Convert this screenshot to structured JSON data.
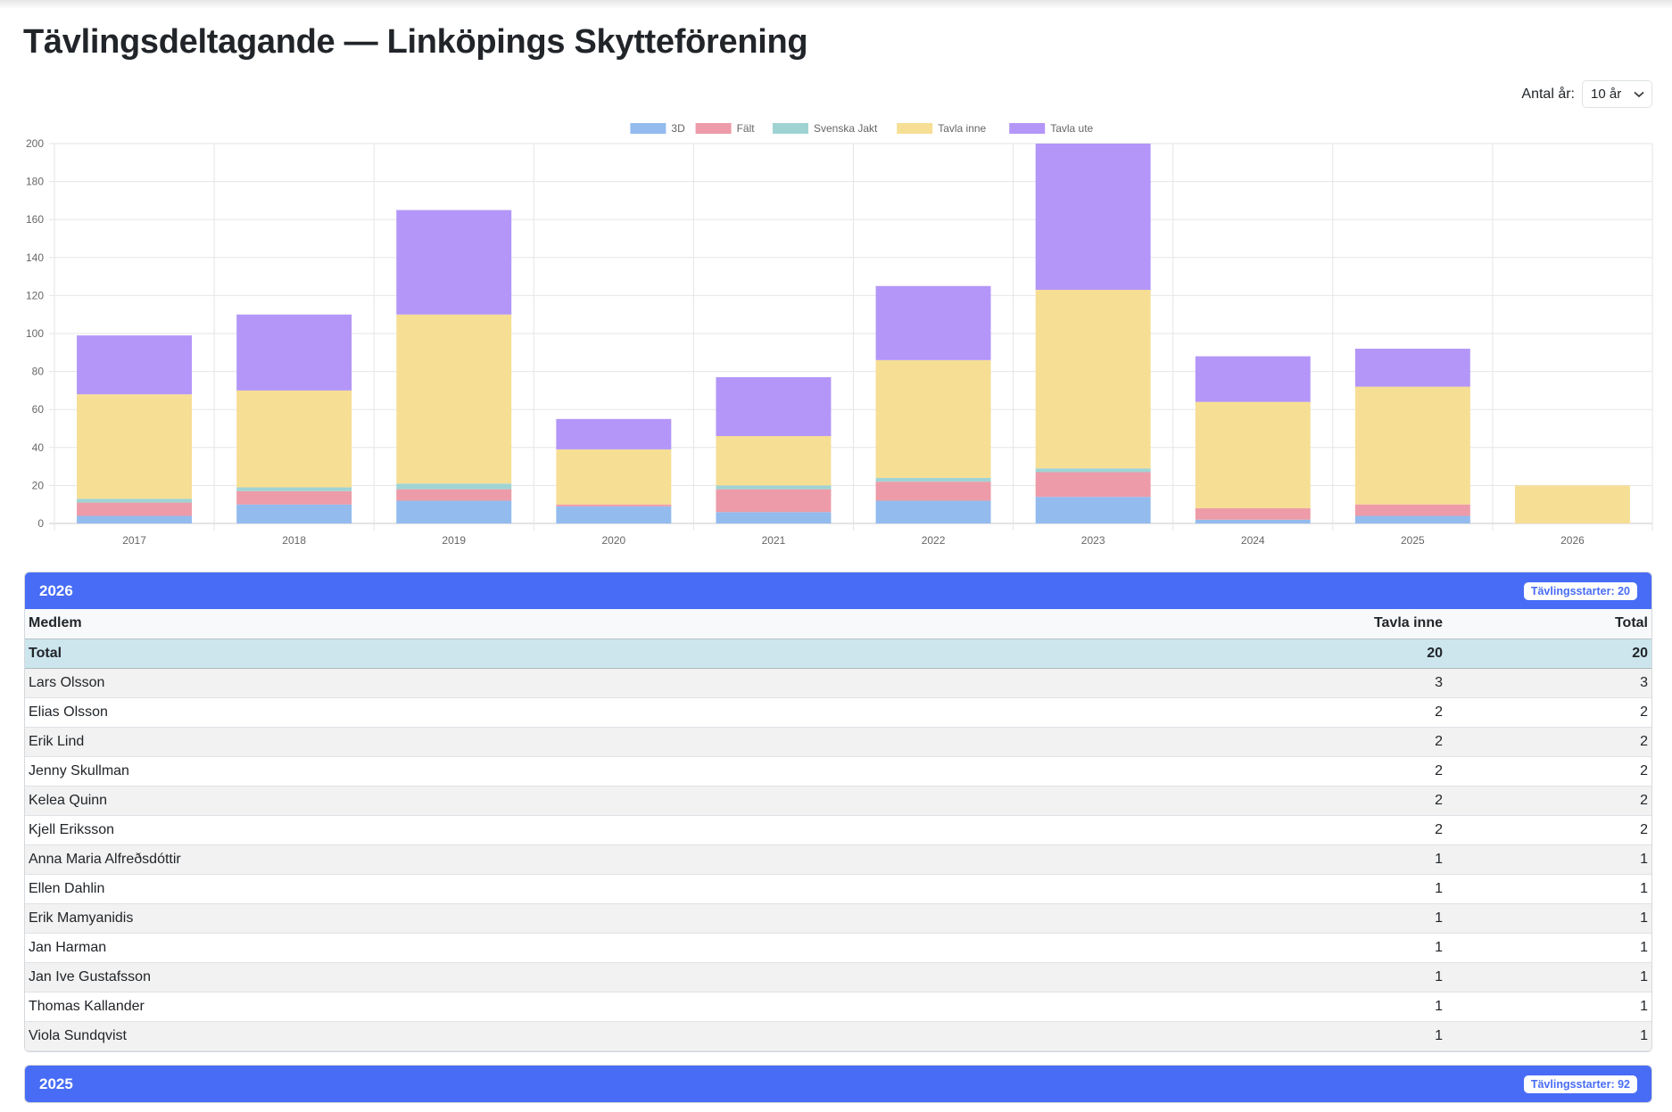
{
  "page_title": "Tävlingsdeltagande — Linköpings Skytteförening",
  "year_selector": {
    "label": "Antal år:",
    "value": "10 år",
    "icon": "chevron-down-icon"
  },
  "colors": {
    "3D": "#93bbee",
    "Fält": "#ed9ba8",
    "Svenska Jakt": "#9fd3d3",
    "Tavla inne": "#f6de94",
    "Tavla ute": "#b496f8",
    "header": "#486cf5",
    "total_row": "#cde6ee"
  },
  "chart_data": {
    "type": "bar",
    "stacked": true,
    "categories": [
      "2017",
      "2018",
      "2019",
      "2020",
      "2021",
      "2022",
      "2023",
      "2024",
      "2025",
      "2026"
    ],
    "series": [
      {
        "name": "3D",
        "values": [
          4,
          10,
          12,
          9,
          6,
          12,
          14,
          2,
          4,
          0
        ]
      },
      {
        "name": "Fält",
        "values": [
          7,
          7,
          6,
          1,
          12,
          10,
          13,
          6,
          6,
          0
        ]
      },
      {
        "name": "Svenska Jakt",
        "values": [
          2,
          2,
          3,
          0,
          2,
          2,
          2,
          0,
          0,
          0
        ]
      },
      {
        "name": "Tavla inne",
        "values": [
          55,
          51,
          89,
          29,
          26,
          62,
          94,
          56,
          62,
          20
        ]
      },
      {
        "name": "Tavla ute",
        "values": [
          31,
          40,
          55,
          16,
          31,
          39,
          77,
          24,
          20,
          0
        ]
      }
    ],
    "ylim": [
      0,
      200
    ],
    "yticks": [
      0,
      20,
      40,
      60,
      80,
      100,
      120,
      140,
      160,
      180,
      200
    ],
    "grid": true,
    "legend": "top-center"
  },
  "sections": [
    {
      "year": "2026",
      "badge": "Tävlingsstarter: 20",
      "columns": [
        "Medlem",
        "Tavla inne",
        "Total"
      ],
      "total": {
        "label": "Total",
        "values": [
          "20",
          "20"
        ]
      },
      "rows": [
        {
          "name": "Lars Olsson",
          "values": [
            "3",
            "3"
          ]
        },
        {
          "name": "Elias Olsson",
          "values": [
            "2",
            "2"
          ]
        },
        {
          "name": "Erik Lind",
          "values": [
            "2",
            "2"
          ]
        },
        {
          "name": "Jenny Skullman",
          "values": [
            "2",
            "2"
          ]
        },
        {
          "name": "Kelea Quinn",
          "values": [
            "2",
            "2"
          ]
        },
        {
          "name": "Kjell Eriksson",
          "values": [
            "2",
            "2"
          ]
        },
        {
          "name": "Anna Maria Alfreðsdóttir",
          "values": [
            "1",
            "1"
          ]
        },
        {
          "name": "Ellen Dahlin",
          "values": [
            "1",
            "1"
          ]
        },
        {
          "name": "Erik Mamyanidis",
          "values": [
            "1",
            "1"
          ]
        },
        {
          "name": "Jan Harman",
          "values": [
            "1",
            "1"
          ]
        },
        {
          "name": "Jan Ive Gustafsson",
          "values": [
            "1",
            "1"
          ]
        },
        {
          "name": "Thomas Kallander",
          "values": [
            "1",
            "1"
          ]
        },
        {
          "name": "Viola Sundqvist",
          "values": [
            "1",
            "1"
          ]
        }
      ]
    },
    {
      "year": "2025",
      "badge": "Tävlingsstarter: 92"
    }
  ]
}
